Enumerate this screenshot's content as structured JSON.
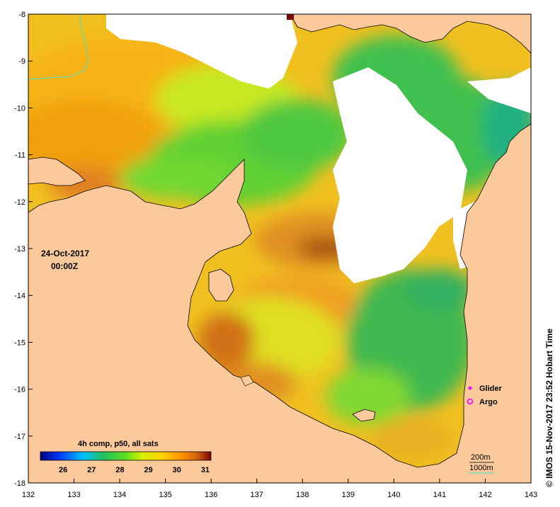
{
  "map": {
    "date_line1": "24-Oct-2017",
    "date_line2": "00:00Z",
    "x_ticks": [
      "132",
      "133",
      "134",
      "135",
      "136",
      "137",
      "138",
      "139",
      "140",
      "141",
      "142",
      "143"
    ],
    "y_ticks": [
      "-8",
      "-9",
      "-10",
      "-11",
      "-12",
      "-13",
      "-14",
      "-15",
      "-16",
      "-17",
      "-18"
    ],
    "colorbar_title": "4h comp, p50, all sats",
    "colorbar_ticks": [
      "26",
      "27",
      "28",
      "29",
      "30",
      "31"
    ],
    "colorbar_colors": [
      "#00007f",
      "#0040ff",
      "#00c0ff",
      "#20c060",
      "#60e020",
      "#d8f000",
      "#ffd000",
      "#ff9000",
      "#d06010",
      "#7f0000"
    ],
    "legend": {
      "glider": "Glider",
      "argo": "Argo"
    },
    "contours": {
      "c200": "200m",
      "c1000": "1000m"
    },
    "credit": "© IMOS 15-Nov-2017 23:52 Hobart Time",
    "colors": {
      "land": "#fcc99b",
      "nodata": "#ffffff",
      "marker": "#ff00ff",
      "contour1000": "#40e0d0"
    }
  }
}
